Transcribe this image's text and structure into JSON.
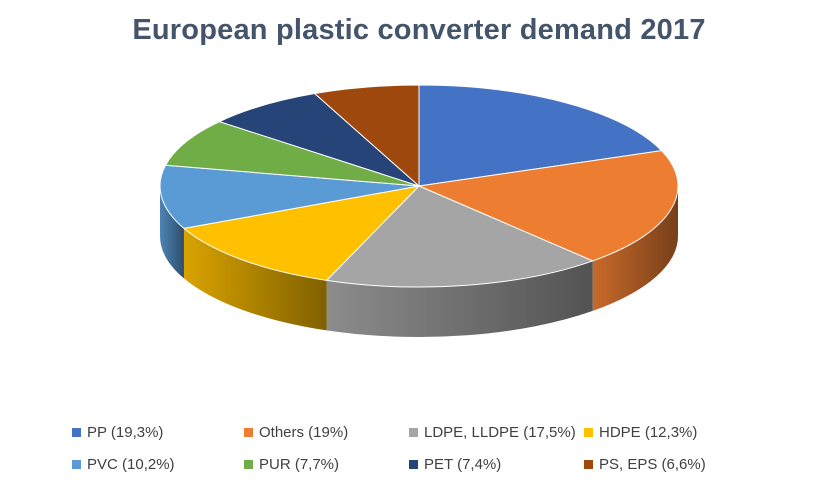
{
  "chart_data": {
    "type": "pie",
    "title": "European plastic converter demand 2017",
    "legend_position": "bottom",
    "three_d": true,
    "slices": [
      {
        "label": "PP (19,3%)",
        "value": 19.3,
        "color": "#4472c4"
      },
      {
        "label": "Others (19%)",
        "value": 19.0,
        "color": "#ed7d31"
      },
      {
        "label": "LDPE, LLDPE (17,5%)",
        "value": 17.5,
        "color": "#a5a5a5"
      },
      {
        "label": "HDPE (12,3%)",
        "value": 12.3,
        "color": "#ffc000"
      },
      {
        "label": "PVC (10,2%)",
        "value": 10.2,
        "color": "#5b9bd5"
      },
      {
        "label": "PUR (7,7%)",
        "value": 7.7,
        "color": "#70ad47"
      },
      {
        "label": "PET (7,4%)",
        "value": 7.4,
        "color": "#264478"
      },
      {
        "label": "PS, EPS (6,6%)",
        "value": 6.6,
        "color": "#9e480e"
      }
    ]
  }
}
